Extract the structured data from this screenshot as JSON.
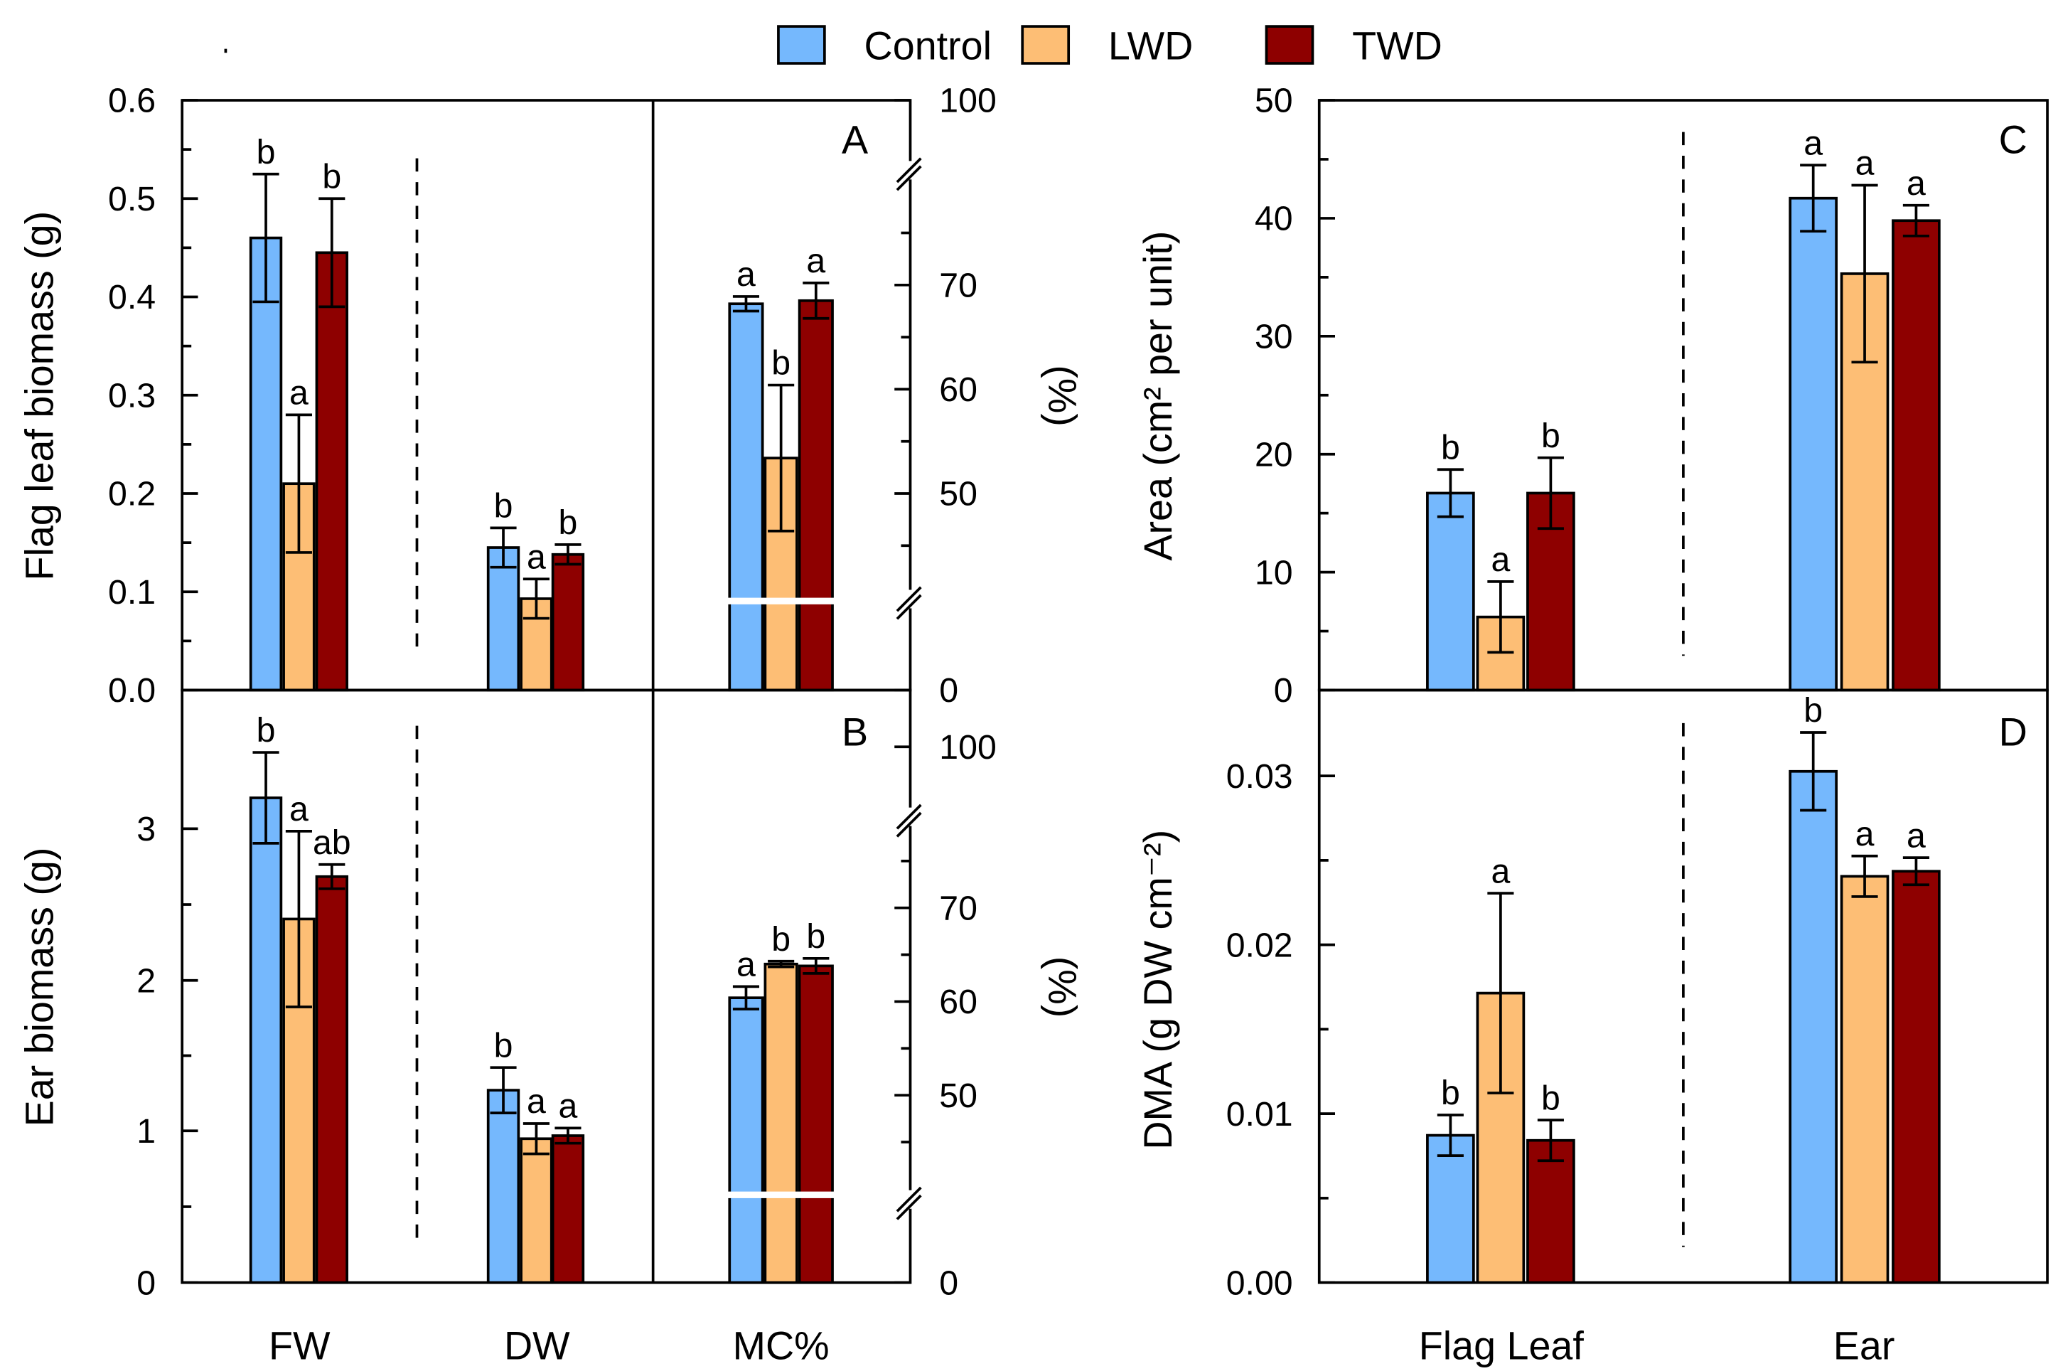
{
  "legend": [
    "Control",
    "LWD",
    "TWD"
  ],
  "colors": {
    "Control": "#75B8FD",
    "LWD": "#FDBE75",
    "TWD": "#8E0000"
  },
  "chart_data": [
    {
      "type": "bar",
      "panel": "A",
      "ylabel": "Flag leaf biomass (g)",
      "ylabel_right": "(%)",
      "ylim": [
        0,
        0.6
      ],
      "yticks": [
        "0.0",
        "0.1",
        "0.2",
        "0.3",
        "0.4",
        "0.5",
        "0.6"
      ],
      "yticks_right": [
        "0",
        "50",
        "60",
        "70",
        "100"
      ],
      "categories": [
        "FW",
        "DW",
        "MC%"
      ],
      "series": [
        {
          "name": "Control",
          "values": [
            0.46,
            0.145,
            68.2
          ],
          "errors": [
            0.065,
            0.02,
            0.7
          ],
          "letters": [
            "b",
            "b",
            "a"
          ]
        },
        {
          "name": "LWD",
          "values": [
            0.21,
            0.093,
            53.4
          ],
          "errors": [
            0.07,
            0.02,
            7.0
          ],
          "letters": [
            "a",
            "a",
            "b"
          ]
        },
        {
          "name": "TWD",
          "values": [
            0.445,
            0.138,
            68.5
          ],
          "errors": [
            0.055,
            0.01,
            1.7
          ],
          "letters": [
            "b",
            "b",
            "a"
          ]
        }
      ]
    },
    {
      "type": "bar",
      "panel": "B",
      "ylabel": "Ear biomass (g)",
      "ylabel_right": "(%)",
      "ylim": [
        0,
        3.9
      ],
      "yticks": [
        "0",
        "1",
        "2",
        "3"
      ],
      "yticks_right": [
        "0",
        "50",
        "60",
        "70",
        "100"
      ],
      "categories": [
        "FW",
        "DW",
        "MC%"
      ],
      "series": [
        {
          "name": "Control",
          "values": [
            3.2,
            1.27,
            60.4
          ],
          "errors": [
            0.3,
            0.15,
            1.2
          ],
          "letters": [
            "b",
            "b",
            "a"
          ]
        },
        {
          "name": "LWD",
          "values": [
            2.4,
            0.95,
            64.0
          ],
          "errors": [
            0.58,
            0.1,
            0.3
          ],
          "letters": [
            "a",
            "a",
            "b"
          ]
        },
        {
          "name": "TWD",
          "values": [
            2.68,
            0.97,
            63.8
          ],
          "errors": [
            0.08,
            0.05,
            0.8
          ],
          "letters": [
            "ab",
            "a",
            "b"
          ]
        }
      ]
    },
    {
      "type": "bar",
      "panel": "C",
      "ylabel": "Area (cm² per unit)",
      "ylim": [
        0,
        50
      ],
      "yticks": [
        "0",
        "10",
        "20",
        "30",
        "40",
        "50"
      ],
      "categories": [
        "Flag Leaf",
        "Ear"
      ],
      "series": [
        {
          "name": "Control",
          "values": [
            16.7,
            41.7
          ],
          "errors": [
            2.0,
            2.8
          ],
          "letters": [
            "b",
            "a"
          ]
        },
        {
          "name": "LWD",
          "values": [
            6.2,
            35.3
          ],
          "errors": [
            3.0,
            7.5
          ],
          "letters": [
            "a",
            "a"
          ]
        },
        {
          "name": "TWD",
          "values": [
            16.7,
            39.8
          ],
          "errors": [
            3.0,
            1.3
          ],
          "letters": [
            "b",
            "a"
          ]
        }
      ]
    },
    {
      "type": "bar",
      "panel": "D",
      "ylabel": "DMA (g DW cm⁻²)",
      "ylim": [
        0,
        0.035
      ],
      "yticks": [
        "0.00",
        "0.01",
        "0.02",
        "0.03"
      ],
      "categories": [
        "Flag Leaf",
        "Ear"
      ],
      "series": [
        {
          "name": "Control",
          "values": [
            0.0087,
            0.0302
          ],
          "errors": [
            0.0012,
            0.0023
          ],
          "letters": [
            "b",
            "b"
          ]
        },
        {
          "name": "LWD",
          "values": [
            0.0171,
            0.024
          ],
          "errors": [
            0.0059,
            0.0012
          ],
          "letters": [
            "a",
            "a"
          ]
        },
        {
          "name": "TWD",
          "values": [
            0.0084,
            0.0243
          ],
          "errors": [
            0.0012,
            0.0008
          ],
          "letters": [
            "b",
            "a"
          ]
        }
      ]
    }
  ]
}
